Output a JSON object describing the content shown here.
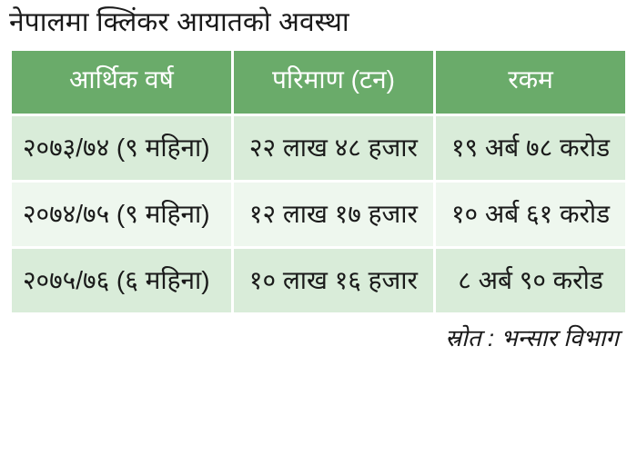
{
  "title": "नेपालमा क्लिंकर आयातको अवस्था",
  "table": {
    "type": "table",
    "header_bg": "#6aab6a",
    "header_text_color": "#ffffff",
    "row_even_bg": "#d9ecd9",
    "row_odd_bg": "#eef7ee",
    "cell_text_color": "#1a1a1a",
    "border_spacing": 3,
    "title_fontsize": 30,
    "header_fontsize": 28,
    "cell_fontsize": 28,
    "columns": [
      {
        "label": "आर्थिक वर्ष",
        "align": "left",
        "width": "34%"
      },
      {
        "label": "परिमाण (टन)",
        "align": "center",
        "width": "34%"
      },
      {
        "label": "रकम",
        "align": "center",
        "width": "32%"
      }
    ],
    "rows": [
      {
        "year": "२०७३/७४ (९ महिना)",
        "qty": "२२ लाख ४८ हजार",
        "amount": "१९ अर्ब ७८ करोड"
      },
      {
        "year": "२०७४/७५ (९ महिना)",
        "qty": "१२ लाख १७ हजार",
        "amount": "१० अर्ब ६१ करोड"
      },
      {
        "year": "२०७५/७६ (६ महिना)",
        "qty": "१० लाख १६ हजार",
        "amount": "८ अर्ब ९० करोड"
      }
    ]
  },
  "source": "स्रोत : भन्सार विभाग"
}
